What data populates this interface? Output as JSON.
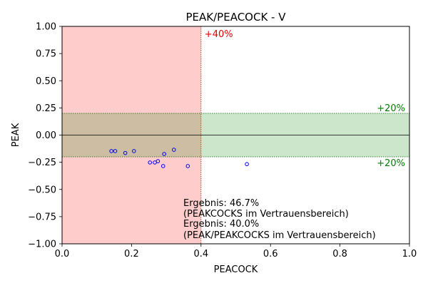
{
  "chart_data": {
    "type": "scatter",
    "title": "PEAK/PEACOCK - V",
    "xlabel": "PEACOCK",
    "ylabel": "PEAK",
    "xlim": [
      0.0,
      1.0
    ],
    "ylim": [
      -1.0,
      1.0
    ],
    "x_ticks": [
      0.0,
      0.2,
      0.4,
      0.6,
      0.8,
      1.0
    ],
    "x_tick_labels": [
      "0.0",
      "0.2",
      "0.4",
      "0.6",
      "0.8",
      "1.0"
    ],
    "y_ticks": [
      1.0,
      0.75,
      0.5,
      0.25,
      0.0,
      -0.25,
      -0.5,
      -0.75,
      -1.0
    ],
    "y_tick_labels": [
      "1.00",
      "0.75",
      "0.50",
      "0.25",
      "0.00",
      "−0.25",
      "−0.50",
      "−0.75",
      "−1.00"
    ],
    "grid": false,
    "series": [
      {
        "color": "#0000ff",
        "marker": "open-circle",
        "points": [
          [
            0.142,
            -0.147
          ],
          [
            0.153,
            -0.147
          ],
          [
            0.182,
            -0.165
          ],
          [
            0.207,
            -0.147
          ],
          [
            0.253,
            -0.252
          ],
          [
            0.267,
            -0.252
          ],
          [
            0.276,
            -0.24
          ],
          [
            0.291,
            -0.285
          ],
          [
            0.294,
            -0.174
          ],
          [
            0.322,
            -0.135
          ],
          [
            0.362,
            -0.285
          ],
          [
            0.532,
            -0.267
          ]
        ]
      }
    ],
    "regions": [
      {
        "type": "vspan",
        "x0": 0.0,
        "x1": 0.4,
        "color": "#ff0000",
        "opacity": 0.2
      },
      {
        "type": "hspan",
        "y0": -0.2,
        "y1": 0.2,
        "color": "#008000",
        "opacity": 0.2
      }
    ],
    "reference_lines": [
      {
        "type": "vline",
        "x": 0.4,
        "color": "#ff0000",
        "style": "dotted"
      },
      {
        "type": "hline",
        "y": 0.2,
        "color": "#006400",
        "style": "dotted"
      },
      {
        "type": "hline",
        "y": -0.2,
        "color": "#006400",
        "style": "dotted"
      },
      {
        "type": "hline",
        "y": 0.0,
        "color": "#000000",
        "style": "solid"
      }
    ],
    "annotations": {
      "vline_label": {
        "text": "+40%",
        "color": "#e00000"
      },
      "upper_band_label": {
        "text": "+20%",
        "color": "#008000"
      },
      "lower_band_label": {
        "text": "+20%",
        "color": "#008000"
      },
      "result_lines": [
        "Ergebnis: 46.7%",
        "(PEAKCOCKS im Vertrauensbereich)",
        "Ergebnis: 40.0%",
        "(PEAK/PEAKCOCKS im Vertrauensbereich)"
      ]
    }
  }
}
